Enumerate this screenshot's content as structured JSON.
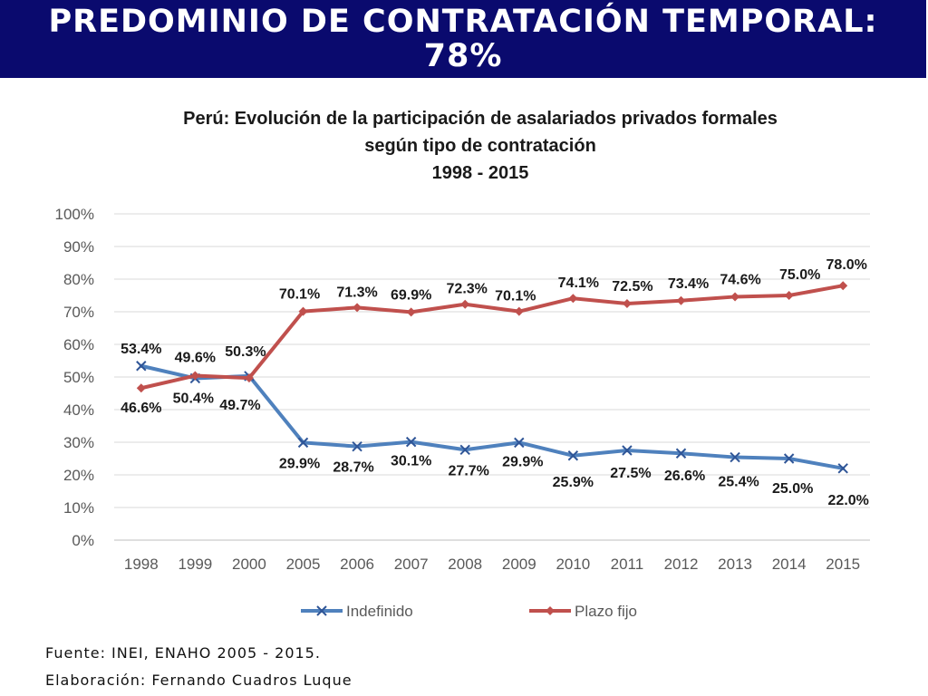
{
  "header": {
    "title_line1": "PREDOMINIO DE CONTRATACIÓN TEMPORAL:",
    "title_line2": "78%"
  },
  "colors": {
    "banner": "#0a0a6e",
    "indefinido": "#4f81bd",
    "plazo_fijo": "#c0504d"
  },
  "chart_data": {
    "type": "line",
    "title": [
      "Perú: Evolución de la participación de asalariados privados formales",
      "según tipo de contratación",
      "1998 - 2015"
    ],
    "categories": [
      "1998",
      "1999",
      "2000",
      "2005",
      "2006",
      "2007",
      "2008",
      "2009",
      "2010",
      "2011",
      "2012",
      "2013",
      "2014",
      "2015"
    ],
    "ylim": [
      0,
      100
    ],
    "yticks": [
      "0%",
      "10%",
      "20%",
      "30%",
      "40%",
      "50%",
      "60%",
      "70%",
      "80%",
      "90%",
      "100%"
    ],
    "grid": true,
    "legend_position": "bottom",
    "series": [
      {
        "name": "Indefinido",
        "color": "#4f81bd",
        "marker": "x",
        "values": [
          53.4,
          49.6,
          50.3,
          29.9,
          28.7,
          30.1,
          27.7,
          29.9,
          25.9,
          27.5,
          26.6,
          25.4,
          25.0,
          22.0
        ],
        "labels": [
          "53.4%",
          "49.6%",
          "50.3%",
          "29.9%",
          "28.7%",
          "30.1%",
          "27.7%",
          "29.9%",
          "25.9%",
          "27.5%",
          "26.6%",
          "25.4%",
          "25.0%",
          "22.0%"
        ]
      },
      {
        "name": "Plazo fijo",
        "color": "#c0504d",
        "marker": "diamond",
        "values": [
          46.6,
          50.4,
          49.7,
          70.1,
          71.3,
          69.9,
          72.3,
          70.1,
          74.1,
          72.5,
          73.4,
          74.6,
          75.0,
          78.0
        ],
        "labels": [
          "46.6%",
          "50.4%",
          "49.7%",
          "70.1%",
          "71.3%",
          "69.9%",
          "72.3%",
          "70.1%",
          "74.1%",
          "72.5%",
          "73.4%",
          "74.6%",
          "75.0%",
          "78.0%"
        ]
      }
    ]
  },
  "footer": {
    "source": "Fuente: INEI, ENAHO 2005 - 2015.",
    "author": "Elaboración: Fernando Cuadros Luque"
  }
}
